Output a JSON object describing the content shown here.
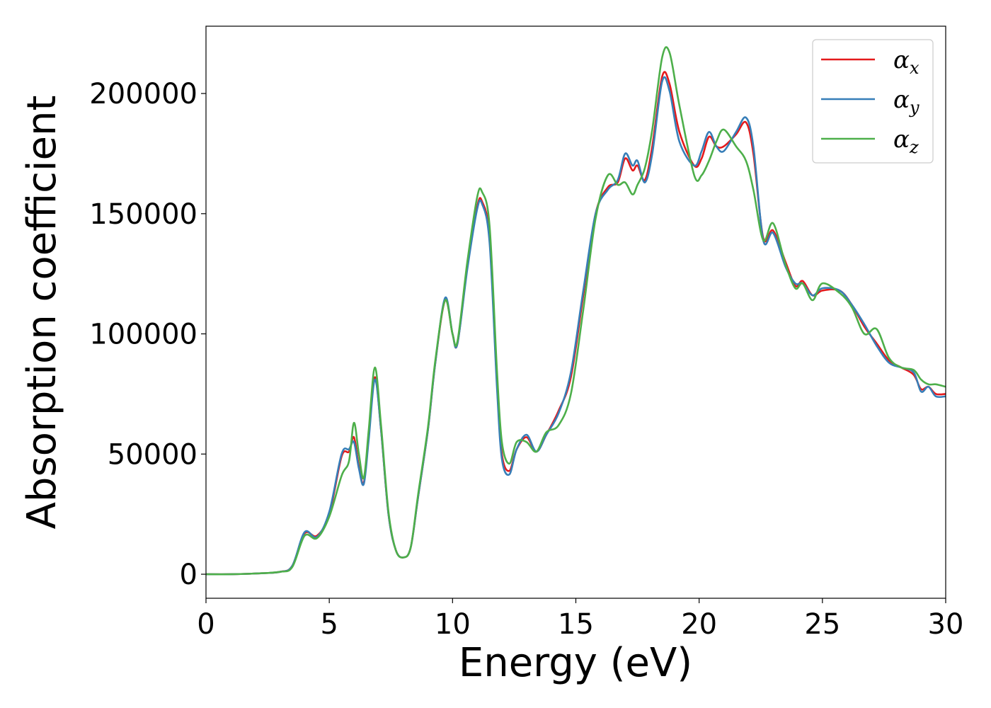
{
  "chart_data": {
    "type": "line",
    "title": "",
    "xlabel": "Energy (eV)",
    "ylabel": "Absorption coefficient",
    "xlim": [
      0,
      30
    ],
    "ylim": [
      -10000,
      228000
    ],
    "xticks": [
      0,
      5,
      10,
      15,
      20,
      25,
      30
    ],
    "yticks": [
      0,
      50000,
      100000,
      150000,
      200000
    ],
    "grid": false,
    "legend_position": "top-right",
    "series": [
      {
        "name": "αx",
        "symbol": "α",
        "subscript": "x",
        "color": "#e41a1c",
        "points": [
          [
            0,
            0
          ],
          [
            1,
            0
          ],
          [
            2,
            300
          ],
          [
            3,
            1000
          ],
          [
            3.5,
            3500
          ],
          [
            4,
            17000
          ],
          [
            4.5,
            16000
          ],
          [
            5,
            25000
          ],
          [
            5.5,
            49000
          ],
          [
            5.8,
            51000
          ],
          [
            6.0,
            57000
          ],
          [
            6.2,
            45000
          ],
          [
            6.4,
            38000
          ],
          [
            6.6,
            58000
          ],
          [
            6.85,
            82000
          ],
          [
            7.1,
            60000
          ],
          [
            7.4,
            25000
          ],
          [
            7.7,
            10000
          ],
          [
            8.0,
            7000
          ],
          [
            8.3,
            11000
          ],
          [
            8.6,
            32000
          ],
          [
            9.0,
            60000
          ],
          [
            9.3,
            88000
          ],
          [
            9.7,
            114000
          ],
          [
            10.0,
            100000
          ],
          [
            10.2,
            96000
          ],
          [
            10.6,
            128000
          ],
          [
            11.0,
            153000
          ],
          [
            11.2,
            155000
          ],
          [
            11.5,
            140000
          ],
          [
            11.8,
            80000
          ],
          [
            12.0,
            50000
          ],
          [
            12.3,
            43000
          ],
          [
            12.6,
            52000
          ],
          [
            13.0,
            57000
          ],
          [
            13.4,
            51000
          ],
          [
            13.8,
            58000
          ],
          [
            14.3,
            68000
          ],
          [
            14.8,
            82000
          ],
          [
            15.3,
            116000
          ],
          [
            15.8,
            150000
          ],
          [
            16.3,
            161000
          ],
          [
            16.7,
            163000
          ],
          [
            17.0,
            173000
          ],
          [
            17.3,
            168000
          ],
          [
            17.5,
            170000
          ],
          [
            17.8,
            164000
          ],
          [
            18.1,
            178000
          ],
          [
            18.5,
            207000
          ],
          [
            18.8,
            204000
          ],
          [
            19.2,
            184000
          ],
          [
            19.8,
            170000
          ],
          [
            20.1,
            173000
          ],
          [
            20.4,
            182000
          ],
          [
            20.7,
            178000
          ],
          [
            21.0,
            178000
          ],
          [
            21.5,
            183000
          ],
          [
            21.9,
            188000
          ],
          [
            22.2,
            175000
          ],
          [
            22.6,
            140000
          ],
          [
            23.0,
            143000
          ],
          [
            23.5,
            130000
          ],
          [
            23.9,
            120000
          ],
          [
            24.2,
            122000
          ],
          [
            24.6,
            116000
          ],
          [
            25.0,
            118000
          ],
          [
            25.7,
            118000
          ],
          [
            26.2,
            112000
          ],
          [
            26.7,
            103000
          ],
          [
            27.2,
            96000
          ],
          [
            27.7,
            89000
          ],
          [
            28.2,
            86000
          ],
          [
            28.7,
            83000
          ],
          [
            29.0,
            77000
          ],
          [
            29.3,
            78000
          ],
          [
            29.6,
            75000
          ],
          [
            30,
            75000
          ]
        ]
      },
      {
        "name": "αy",
        "symbol": "α",
        "subscript": "y",
        "color": "#377eb8",
        "points": [
          [
            0,
            0
          ],
          [
            1,
            0
          ],
          [
            2,
            300
          ],
          [
            3,
            1000
          ],
          [
            3.5,
            3500
          ],
          [
            4,
            17500
          ],
          [
            4.5,
            15500
          ],
          [
            5,
            26000
          ],
          [
            5.5,
            50000
          ],
          [
            5.8,
            52000
          ],
          [
            6.0,
            55000
          ],
          [
            6.2,
            44000
          ],
          [
            6.4,
            37500
          ],
          [
            6.6,
            56000
          ],
          [
            6.85,
            81000
          ],
          [
            7.1,
            60000
          ],
          [
            7.4,
            25000
          ],
          [
            7.7,
            10000
          ],
          [
            8.0,
            7000
          ],
          [
            8.3,
            11000
          ],
          [
            8.6,
            32000
          ],
          [
            9.0,
            60000
          ],
          [
            9.3,
            88000
          ],
          [
            9.7,
            115000
          ],
          [
            10.0,
            100000
          ],
          [
            10.2,
            96000
          ],
          [
            10.6,
            127000
          ],
          [
            11.0,
            152000
          ],
          [
            11.2,
            154000
          ],
          [
            11.5,
            138000
          ],
          [
            11.8,
            78000
          ],
          [
            12.0,
            48000
          ],
          [
            12.3,
            41500
          ],
          [
            12.6,
            52000
          ],
          [
            13.0,
            58000
          ],
          [
            13.4,
            51000
          ],
          [
            13.8,
            58000
          ],
          [
            14.3,
            67000
          ],
          [
            14.8,
            84000
          ],
          [
            15.3,
            118000
          ],
          [
            15.8,
            150000
          ],
          [
            16.3,
            160000
          ],
          [
            16.7,
            164000
          ],
          [
            17.0,
            175000
          ],
          [
            17.3,
            170000
          ],
          [
            17.5,
            172000
          ],
          [
            17.8,
            163000
          ],
          [
            18.1,
            175000
          ],
          [
            18.5,
            205000
          ],
          [
            18.8,
            201000
          ],
          [
            19.2,
            180000
          ],
          [
            19.8,
            170000
          ],
          [
            20.1,
            176000
          ],
          [
            20.4,
            184000
          ],
          [
            20.7,
            178000
          ],
          [
            21.0,
            176000
          ],
          [
            21.5,
            184000
          ],
          [
            21.9,
            190000
          ],
          [
            22.2,
            178000
          ],
          [
            22.6,
            139000
          ],
          [
            23.0,
            142000
          ],
          [
            23.5,
            128000
          ],
          [
            23.9,
            121000
          ],
          [
            24.2,
            121000
          ],
          [
            24.6,
            116000
          ],
          [
            25.0,
            119000
          ],
          [
            25.7,
            118000
          ],
          [
            26.2,
            112000
          ],
          [
            26.7,
            104000
          ],
          [
            27.2,
            95000
          ],
          [
            27.7,
            88000
          ],
          [
            28.2,
            86000
          ],
          [
            28.7,
            84000
          ],
          [
            29.0,
            76000
          ],
          [
            29.3,
            78000
          ],
          [
            29.6,
            74000
          ],
          [
            30,
            74000
          ]
        ]
      },
      {
        "name": "αz",
        "symbol": "α",
        "subscript": "z",
        "color": "#4daf4a",
        "points": [
          [
            0,
            0
          ],
          [
            1,
            0
          ],
          [
            2,
            300
          ],
          [
            3,
            1000
          ],
          [
            3.5,
            3000
          ],
          [
            4,
            16000
          ],
          [
            4.5,
            15000
          ],
          [
            5,
            24000
          ],
          [
            5.5,
            41000
          ],
          [
            5.8,
            47000
          ],
          [
            6.0,
            63000
          ],
          [
            6.2,
            50000
          ],
          [
            6.4,
            40000
          ],
          [
            6.6,
            60000
          ],
          [
            6.85,
            86000
          ],
          [
            7.1,
            62000
          ],
          [
            7.4,
            26000
          ],
          [
            7.7,
            10000
          ],
          [
            8.0,
            7000
          ],
          [
            8.3,
            11000
          ],
          [
            8.6,
            33000
          ],
          [
            9.0,
            61000
          ],
          [
            9.3,
            89000
          ],
          [
            9.7,
            114000
          ],
          [
            10.0,
            100000
          ],
          [
            10.2,
            97000
          ],
          [
            10.6,
            130000
          ],
          [
            11.0,
            157000
          ],
          [
            11.2,
            159000
          ],
          [
            11.5,
            145000
          ],
          [
            11.8,
            85000
          ],
          [
            12.0,
            55000
          ],
          [
            12.3,
            46000
          ],
          [
            12.6,
            55000
          ],
          [
            13.0,
            55000
          ],
          [
            13.4,
            51000
          ],
          [
            13.8,
            59000
          ],
          [
            14.3,
            62000
          ],
          [
            14.8,
            75000
          ],
          [
            15.3,
            110000
          ],
          [
            15.8,
            148000
          ],
          [
            16.3,
            166000
          ],
          [
            16.7,
            162000
          ],
          [
            17.0,
            163000
          ],
          [
            17.3,
            158000
          ],
          [
            17.5,
            162000
          ],
          [
            17.8,
            169000
          ],
          [
            18.1,
            185000
          ],
          [
            18.5,
            215000
          ],
          [
            18.8,
            217000
          ],
          [
            19.2,
            195000
          ],
          [
            19.8,
            166000
          ],
          [
            20.1,
            166000
          ],
          [
            20.4,
            172000
          ],
          [
            20.7,
            180000
          ],
          [
            21.0,
            185000
          ],
          [
            21.5,
            178000
          ],
          [
            21.9,
            172000
          ],
          [
            22.2,
            160000
          ],
          [
            22.6,
            139000
          ],
          [
            23.0,
            146000
          ],
          [
            23.5,
            129000
          ],
          [
            23.9,
            119000
          ],
          [
            24.2,
            121000
          ],
          [
            24.6,
            114000
          ],
          [
            25.0,
            121000
          ],
          [
            25.7,
            117000
          ],
          [
            26.2,
            111000
          ],
          [
            26.7,
            100000
          ],
          [
            27.2,
            102000
          ],
          [
            27.7,
            90000
          ],
          [
            28.2,
            86000
          ],
          [
            28.7,
            85000
          ],
          [
            29.0,
            81000
          ],
          [
            29.3,
            79000
          ],
          [
            29.6,
            79000
          ],
          [
            30,
            78000
          ]
        ]
      }
    ]
  }
}
